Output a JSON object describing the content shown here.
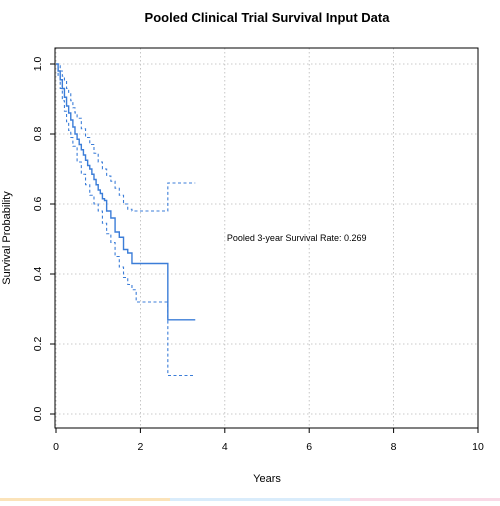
{
  "chart_data": {
    "type": "line",
    "title": "Pooled Clinical Trial Survival Input Data",
    "xlabel": "Years",
    "ylabel": "Survival Probability",
    "xlim": [
      0,
      10
    ],
    "ylim": [
      0,
      1
    ],
    "x_ticks": [
      0,
      2,
      4,
      6,
      8,
      10
    ],
    "y_ticks": [
      0.0,
      0.2,
      0.4,
      0.6,
      0.8,
      1.0
    ],
    "x_tick_labels": [
      "0",
      "2",
      "4",
      "6",
      "8",
      "10"
    ],
    "y_tick_labels": [
      "0.0",
      "0.2",
      "0.4",
      "0.6",
      "0.8",
      "1.0"
    ],
    "grid": true,
    "step": true,
    "annotation": {
      "text": "Pooled 3-year Survival Rate: 0.269",
      "x": 4.05,
      "y": 0.495
    },
    "colors": {
      "series": "#3b7dd8",
      "grid": "#b8b8b8",
      "axis": "#000000"
    },
    "series": [
      {
        "style": "solid",
        "x": [
          0,
          0.05,
          0.1,
          0.15,
          0.2,
          0.25,
          0.3,
          0.35,
          0.4,
          0.45,
          0.5,
          0.55,
          0.6,
          0.65,
          0.7,
          0.75,
          0.8,
          0.85,
          0.9,
          0.95,
          1.0,
          1.05,
          1.1,
          1.15,
          1.2,
          1.3,
          1.4,
          1.5,
          1.6,
          1.7,
          1.8,
          1.9,
          2.65,
          3.3
        ],
        "y": [
          1.0,
          0.98,
          0.955,
          0.93,
          0.905,
          0.88,
          0.86,
          0.84,
          0.82,
          0.8,
          0.785,
          0.77,
          0.755,
          0.74,
          0.725,
          0.71,
          0.7,
          0.685,
          0.67,
          0.655,
          0.64,
          0.63,
          0.615,
          0.61,
          0.58,
          0.56,
          0.52,
          0.505,
          0.47,
          0.46,
          0.43,
          0.43,
          0.269,
          0.269
        ]
      },
      {
        "style": "dashed",
        "x": [
          0,
          0.05,
          0.1,
          0.15,
          0.2,
          0.25,
          0.3,
          0.35,
          0.4,
          0.45,
          0.5,
          0.6,
          0.7,
          0.8,
          0.9,
          1.0,
          1.1,
          1.2,
          1.3,
          1.4,
          1.5,
          1.6,
          1.7,
          1.8,
          1.9,
          2.65,
          3.3
        ],
        "y": [
          1.0,
          0.995,
          0.98,
          0.965,
          0.95,
          0.93,
          0.915,
          0.895,
          0.875,
          0.86,
          0.845,
          0.815,
          0.79,
          0.77,
          0.745,
          0.72,
          0.7,
          0.68,
          0.665,
          0.645,
          0.625,
          0.6,
          0.585,
          0.58,
          0.58,
          0.66,
          0.66
        ]
      },
      {
        "style": "dashed",
        "x": [
          0,
          0.05,
          0.1,
          0.15,
          0.2,
          0.25,
          0.3,
          0.35,
          0.4,
          0.5,
          0.6,
          0.7,
          0.8,
          0.9,
          1.0,
          1.1,
          1.2,
          1.3,
          1.4,
          1.5,
          1.6,
          1.7,
          1.8,
          1.9,
          2.65,
          3.3
        ],
        "y": [
          1.0,
          0.965,
          0.93,
          0.895,
          0.865,
          0.835,
          0.81,
          0.79,
          0.765,
          0.72,
          0.685,
          0.655,
          0.625,
          0.6,
          0.58,
          0.545,
          0.515,
          0.49,
          0.45,
          0.42,
          0.39,
          0.37,
          0.355,
          0.32,
          0.11,
          0.11
        ]
      }
    ]
  }
}
